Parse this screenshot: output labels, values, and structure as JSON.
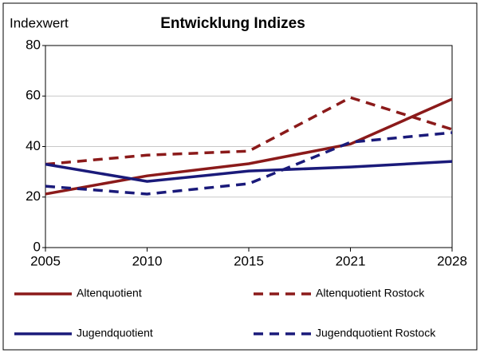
{
  "chart_data": {
    "type": "line",
    "title": "Entwicklung Indizes",
    "y_label": "Indexwert",
    "categories": [
      "2005",
      "2010",
      "2015",
      "2021",
      "2028"
    ],
    "series": [
      {
        "name": "Altenquotient",
        "color": "#8b1a1a",
        "dashed": false,
        "values": [
          21.2,
          28.4,
          33.2,
          41,
          58.8
        ]
      },
      {
        "name": "Altenquotient Rostock",
        "color": "#8b1a1a",
        "dashed": true,
        "values": [
          33,
          36.6,
          38.2,
          59.4,
          46.8
        ]
      },
      {
        "name": "Jugendquotient",
        "color": "#1a1a7a",
        "dashed": false,
        "values": [
          33,
          26.2,
          30.3,
          31.9,
          34.1
        ]
      },
      {
        "name": "Jugendquotient Rostock",
        "color": "#1a1a7a",
        "dashed": true,
        "values": [
          24.3,
          21.2,
          25.3,
          41.7,
          45.5
        ]
      }
    ],
    "ylim": [
      0,
      80
    ],
    "yticks": [
      0,
      20,
      40,
      60,
      80
    ],
    "grid": true,
    "legend": "bottom"
  }
}
